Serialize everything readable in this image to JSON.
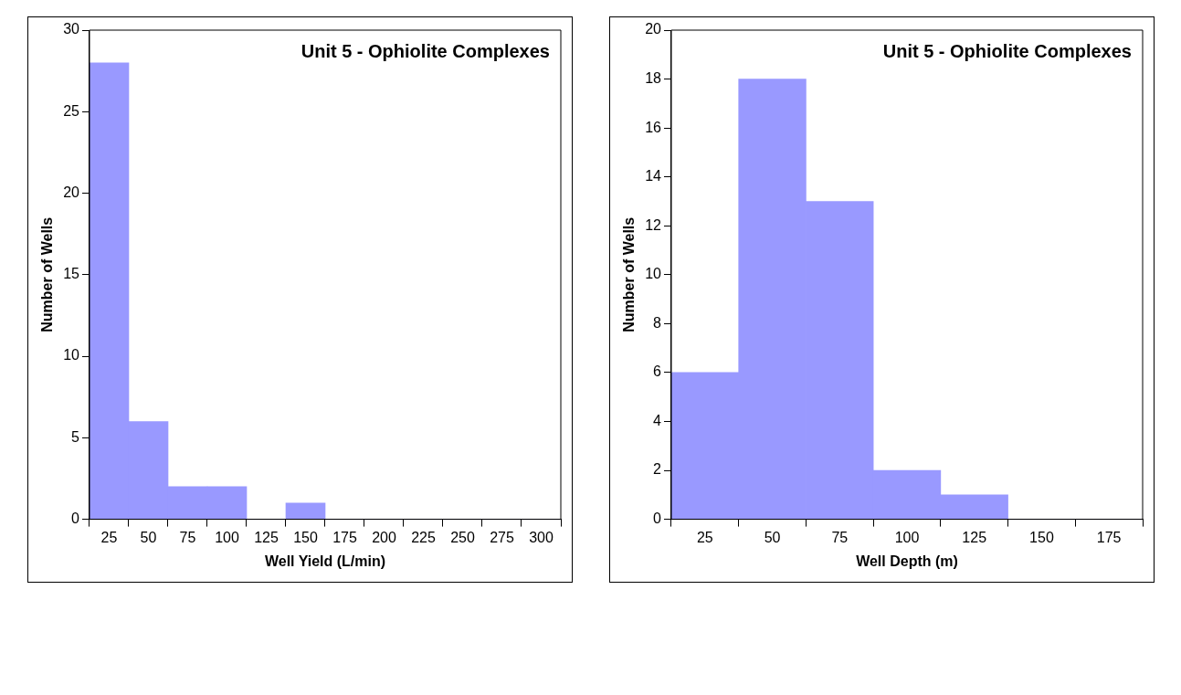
{
  "chart_data": [
    {
      "type": "histogram",
      "title": "Unit 5 - Ophiolite Complexes",
      "xlabel": "Well Yield (L/min)",
      "ylabel": "Number of Wells",
      "bins": [
        12.5,
        37.5,
        62.5,
        87.5,
        112.5,
        137.5,
        162.5,
        187.5,
        212.5,
        237.5,
        262.5,
        287.5,
        312.5
      ],
      "values": [
        28,
        6,
        2,
        2,
        0,
        1,
        0,
        0,
        0,
        0,
        0,
        0
      ],
      "color": "#9999ff",
      "xlim": [
        12.5,
        312.5
      ],
      "xticks": [
        25,
        50,
        75,
        100,
        125,
        150,
        175,
        200,
        225,
        250,
        275,
        300
      ],
      "ylim": [
        0,
        30
      ],
      "yticks": [
        0,
        5,
        10,
        15,
        20,
        25,
        30
      ],
      "legend": false,
      "grid": false
    },
    {
      "type": "histogram",
      "title": "Unit 5 - Ophiolite Complexes",
      "xlabel": "Well Depth (m)",
      "ylabel": "Number of Wells",
      "bins": [
        12.5,
        37.5,
        62.5,
        87.5,
        112.5,
        137.5,
        162.5,
        187.5
      ],
      "values": [
        6,
        18,
        13,
        2,
        1,
        0,
        0
      ],
      "color": "#9999ff",
      "xlim": [
        12.5,
        187.5
      ],
      "xticks": [
        25,
        50,
        75,
        100,
        125,
        150,
        175
      ],
      "ylim": [
        0,
        20
      ],
      "yticks": [
        0,
        2,
        4,
        6,
        8,
        10,
        12,
        14,
        16,
        18,
        20
      ],
      "legend": false,
      "grid": false
    }
  ]
}
